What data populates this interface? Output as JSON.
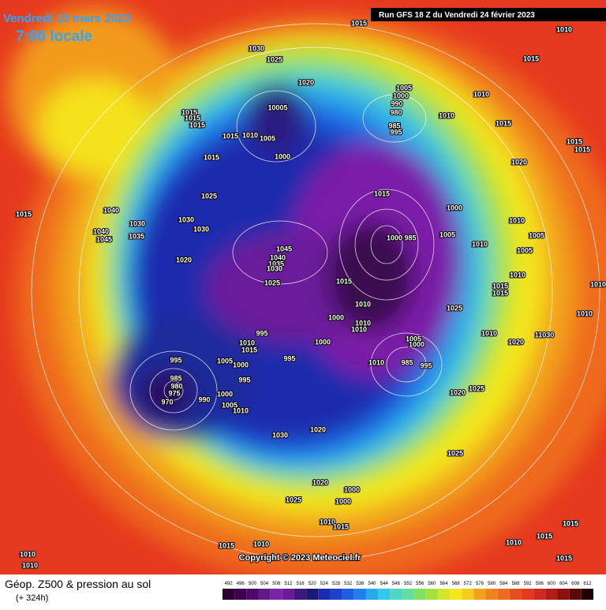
{
  "header": {
    "date": "Vendredi 10 mars 2023",
    "time": "7:00 locale",
    "run": "Run GFS 18 Z du Vendredi 24 février 2023"
  },
  "isobar_labels": [
    1015,
    1010,
    1030,
    1025,
    1015,
    1020,
    1005,
    1000,
    990,
    980,
    1010,
    10005,
    1015,
    1015,
    1015,
    1010,
    985,
    995,
    1015,
    1015,
    1010,
    1005,
    1015,
    1015,
    1015,
    1000,
    1020,
    1015,
    1025,
    1040,
    1015,
    1000,
    1030,
    1030,
    1010,
    1040,
    1030,
    1045,
    1035,
    1000,
    985,
    1005,
    1010,
    1005,
    1045,
    1040,
    1035,
    1030,
    1020,
    1005,
    1010,
    1025,
    1015,
    1015,
    1010,
    1015,
    1010,
    1025,
    1010,
    1000,
    1010,
    1010,
    995,
    1010,
    1010,
    1005,
    1000,
    1000,
    1020,
    11030,
    1015,
    995,
    995,
    1010,
    1005,
    1000,
    985,
    995,
    985,
    980,
    975,
    995,
    970,
    1000,
    990,
    1020,
    1025,
    1005,
    1010,
    1020,
    1030,
    1025,
    1020,
    1000,
    1000,
    1025,
    1010,
    1015,
    1015,
    1015,
    1010,
    1015,
    1010,
    1010,
    1010,
    1015
  ],
  "copyright": "Copyright © 2023 Meteociel.fr",
  "footer": {
    "title": "Géop. Z500 & pression au sol",
    "lead": "(+ 324h)"
  },
  "colorbar": {
    "ticks": [
      492,
      496,
      500,
      504,
      508,
      512,
      516,
      520,
      524,
      528,
      532,
      536,
      540,
      544,
      548,
      552,
      556,
      560,
      564,
      568,
      572,
      576,
      580,
      584,
      588,
      592,
      596,
      600,
      604,
      608,
      612
    ]
  }
}
